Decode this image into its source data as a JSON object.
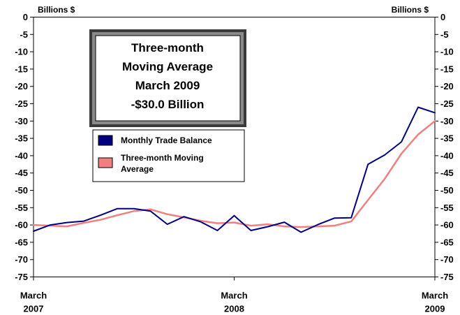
{
  "chart_data": {
    "type": "line",
    "title": "",
    "ylabel_left": "Billions $",
    "ylabel_right": "Billions $",
    "ylim": [
      -75,
      0
    ],
    "yticks": [
      0,
      -5,
      -10,
      -15,
      -20,
      -25,
      -30,
      -35,
      -40,
      -45,
      -50,
      -55,
      -60,
      -65,
      -70,
      -75
    ],
    "grid": false,
    "x": [
      "2007-03",
      "2007-04",
      "2007-05",
      "2007-06",
      "2007-07",
      "2007-08",
      "2007-09",
      "2007-10",
      "2007-11",
      "2007-12",
      "2008-01",
      "2008-02",
      "2008-03",
      "2008-04",
      "2008-05",
      "2008-06",
      "2008-07",
      "2008-08",
      "2008-09",
      "2008-10",
      "2008-11",
      "2008-12",
      "2009-01",
      "2009-02",
      "2009-03"
    ],
    "x_tick_labels": [
      {
        "x": "2007-03",
        "line1": "March",
        "line2": "2007"
      },
      {
        "x": "2008-03",
        "line1": "March",
        "line2": "2008"
      },
      {
        "x": "2009-03",
        "line1": "March",
        "line2": "2009"
      }
    ],
    "series": [
      {
        "name": "Monthly Trade Balance",
        "color": "#000080",
        "values": [
          -61.8,
          -60.0,
          -59.3,
          -58.9,
          -57.2,
          -55.3,
          -55.3,
          -56.0,
          -59.8,
          -57.6,
          -59.1,
          -61.6,
          -57.3,
          -61.6,
          -60.5,
          -59.2,
          -62.1,
          -59.9,
          -58.0,
          -57.9,
          -42.5,
          -39.8,
          -36.0,
          -26.0,
          -27.6
        ]
      },
      {
        "name": "Three-month Moving Average",
        "color": "#f08080",
        "values": [
          -60.0,
          -60.2,
          -60.4,
          -59.4,
          -58.5,
          -57.2,
          -56.0,
          -55.5,
          -56.9,
          -57.8,
          -58.8,
          -59.5,
          -59.3,
          -60.2,
          -59.8,
          -60.4,
          -60.6,
          -60.4,
          -60.2,
          -59.0,
          -52.8,
          -46.7,
          -39.4,
          -33.9,
          -30.0
        ]
      }
    ],
    "legend": "upper-left-inside",
    "callout": {
      "lines": [
        "Three-month",
        "Moving Average",
        "March 2009",
        "-$30.0 Billion"
      ]
    }
  }
}
